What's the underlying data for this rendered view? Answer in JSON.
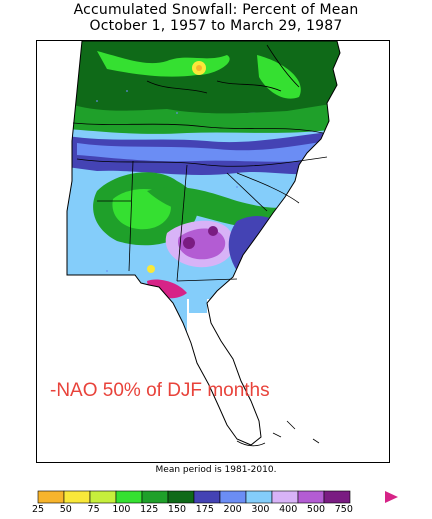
{
  "title": {
    "line1": "Accumulated Snowfall: Percent of Mean",
    "line2": "October 1, 1957 to March 29, 1987"
  },
  "overlay_text": "-NAO 50% of DJF months",
  "footnote": "Mean period is 1981-2010.",
  "colorbar": {
    "ticks": [
      "25",
      "50",
      "75",
      "100",
      "125",
      "150",
      "175",
      "200",
      "300",
      "400",
      "500",
      "750"
    ],
    "colors": [
      "#f7b42c",
      "#f9e83a",
      "#c6ef3c",
      "#35e031",
      "#1fa02a",
      "#0f6a18",
      "#4443b4",
      "#6b8df4",
      "#84cdfa",
      "#d8b3f7",
      "#b35cd3",
      "#7a1c82",
      "#d62387"
    ]
  },
  "map_colors": {
    "ocean": "#ffffff",
    "coast_line": "#000000",
    "state_line": "#000000"
  }
}
